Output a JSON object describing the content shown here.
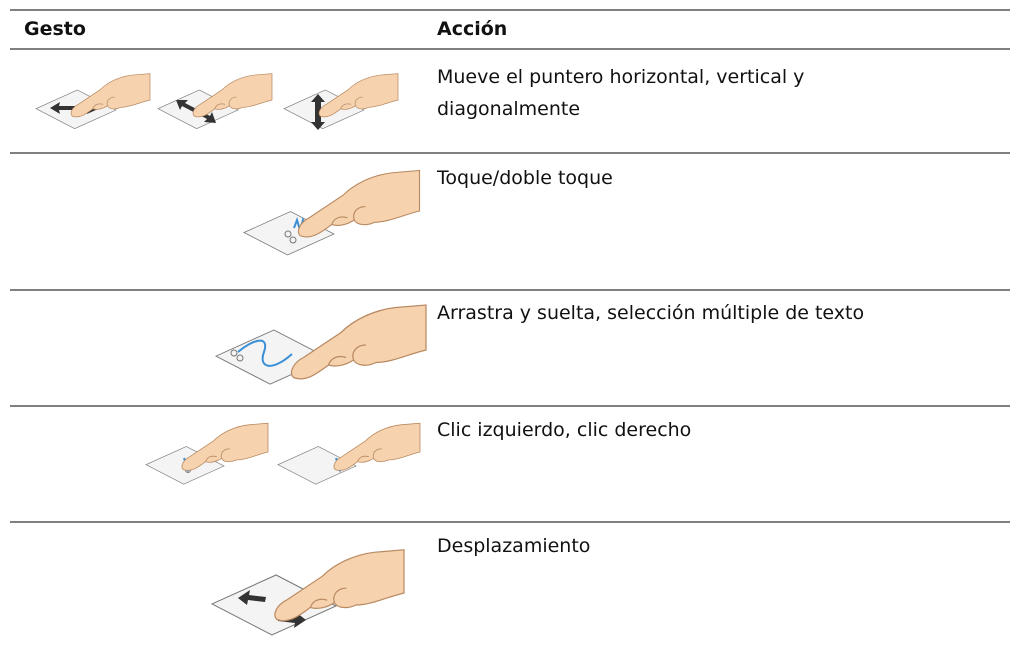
{
  "header": {
    "columns": [
      "Gesto",
      "Acción"
    ]
  },
  "table": {
    "rows": [
      {
        "action": "Mueve el puntero horizontal, vertical y diagonalmente"
      },
      {
        "action": "Toque/doble toque"
      },
      {
        "action": "Arrastra y suelta, selección múltiple de texto"
      },
      {
        "action": "Clic izquierdo, clic derecho"
      },
      {
        "action": "Desplazamiento"
      }
    ]
  }
}
